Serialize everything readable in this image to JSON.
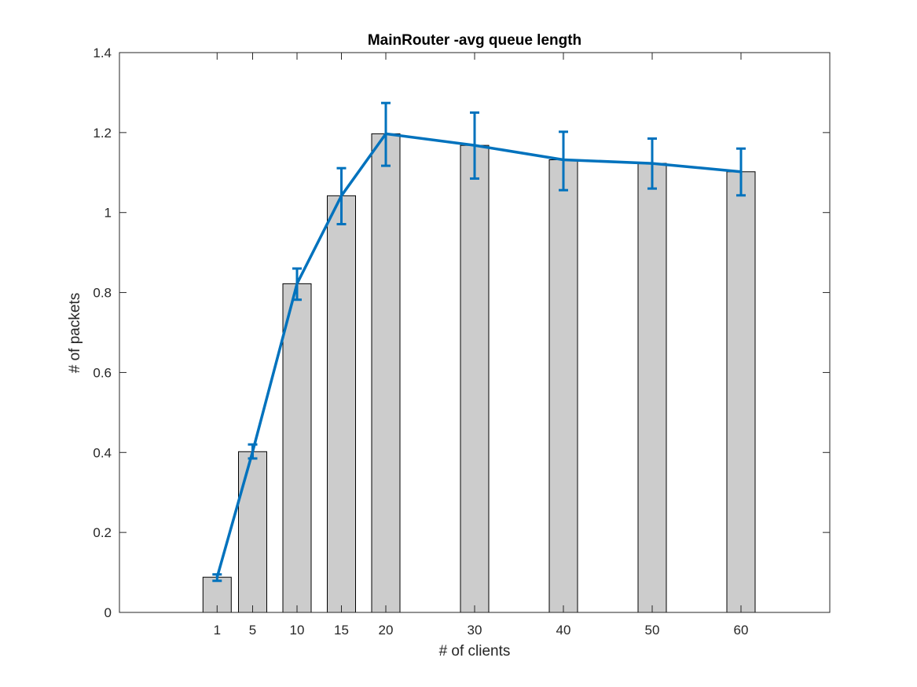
{
  "chart_data": {
    "type": "bar",
    "title": "MainRouter -avg queue length",
    "xlabel": "# of clients",
    "ylabel": "# of packets",
    "x": [
      1,
      5,
      10,
      15,
      20,
      30,
      40,
      50,
      60
    ],
    "x_tick_labels": [
      "1",
      "5",
      "10",
      "15",
      "20",
      "30",
      "40",
      "50",
      "60"
    ],
    "xlim": [
      -10,
      70
    ],
    "ylim": [
      0,
      1.4
    ],
    "y_ticks": [
      0,
      0.2,
      0.4,
      0.6,
      0.8,
      1,
      1.2,
      1.4
    ],
    "y_tick_labels": [
      "0",
      "0.2",
      "0.4",
      "0.6",
      "0.8",
      "1",
      "1.2",
      "1.4"
    ],
    "bars": {
      "values": [
        0.088,
        0.402,
        0.822,
        1.042,
        1.197,
        1.168,
        1.132,
        1.123,
        1.102
      ],
      "color": "#cccccc",
      "edge_color": "#000000"
    },
    "line": {
      "values": [
        0.088,
        0.402,
        0.822,
        1.042,
        1.197,
        1.168,
        1.132,
        1.123,
        1.102
      ],
      "err_low": [
        0.079,
        0.385,
        0.782,
        0.971,
        1.117,
        1.085,
        1.056,
        1.06,
        1.043
      ],
      "err_high": [
        0.095,
        0.42,
        0.86,
        1.111,
        1.274,
        1.25,
        1.202,
        1.185,
        1.16
      ],
      "color": "#0072bd"
    },
    "grid": false,
    "box": true
  }
}
